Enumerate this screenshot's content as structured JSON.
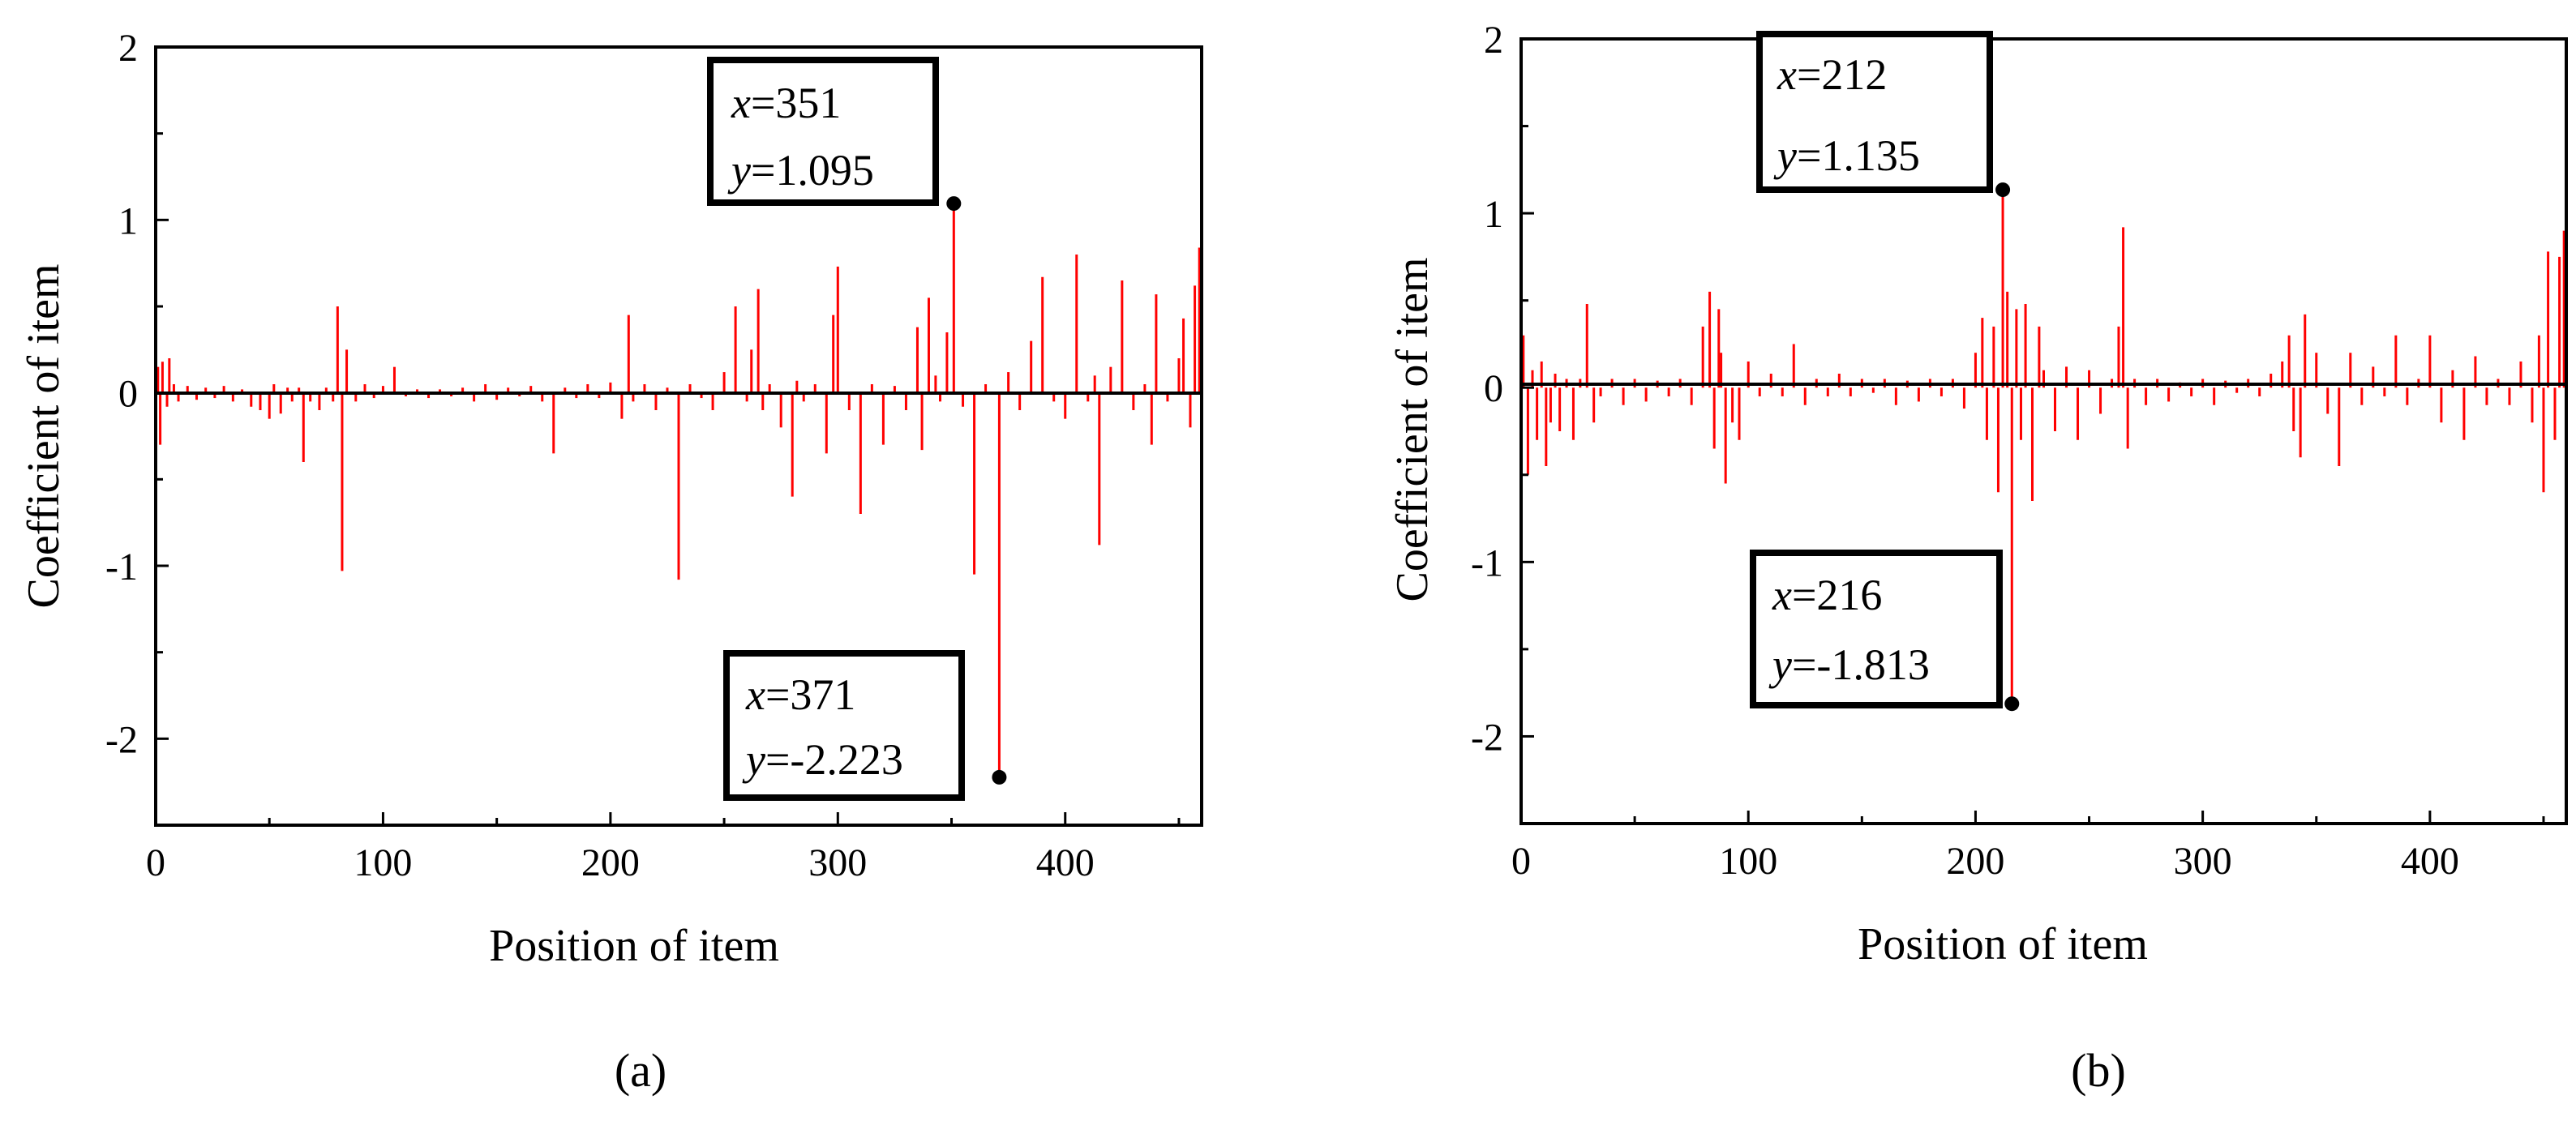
{
  "colors": {
    "series": "#ff0000",
    "axis": "#000000",
    "background": "#ffffff"
  },
  "chart_data": [
    {
      "type": "bar",
      "panel_label": "(a)",
      "title": "",
      "xlabel": "Position of item",
      "ylabel": "Coefficient of item",
      "xlim": [
        0,
        460
      ],
      "ylim": [
        -2.5,
        2
      ],
      "xticks": [
        0,
        100,
        200,
        300,
        400
      ],
      "yticks": [
        2,
        1,
        0,
        -1,
        -2
      ],
      "xtick_labels": [
        "0",
        "100",
        "200",
        "300",
        "400"
      ],
      "ytick_labels": [
        "2",
        "1",
        "0",
        "-1",
        "-2"
      ],
      "x": [
        1,
        2,
        3,
        5,
        6,
        8,
        10,
        14,
        18,
        22,
        26,
        30,
        34,
        38,
        42,
        46,
        50,
        52,
        55,
        58,
        60,
        63,
        65,
        68,
        72,
        75,
        78,
        80,
        82,
        84,
        88,
        92,
        96,
        100,
        105,
        110,
        115,
        120,
        125,
        130,
        135,
        140,
        145,
        150,
        155,
        160,
        165,
        170,
        175,
        180,
        185,
        190,
        195,
        200,
        205,
        208,
        210,
        215,
        220,
        225,
        230,
        235,
        240,
        245,
        250,
        255,
        260,
        262,
        265,
        267,
        270,
        275,
        280,
        282,
        285,
        290,
        295,
        298,
        300,
        305,
        310,
        315,
        320,
        325,
        330,
        335,
        337,
        340,
        343,
        345,
        348,
        351,
        355,
        360,
        365,
        371,
        375,
        380,
        385,
        390,
        395,
        400,
        405,
        410,
        413,
        415,
        420,
        425,
        430,
        435,
        438,
        440,
        445,
        450,
        452,
        455,
        457,
        459
      ],
      "values": [
        0.15,
        -0.3,
        0.18,
        -0.08,
        0.2,
        0.05,
        -0.05,
        0.04,
        -0.04,
        0.03,
        -0.03,
        0.04,
        -0.05,
        0.02,
        -0.08,
        -0.1,
        -0.15,
        0.05,
        -0.12,
        0.03,
        -0.05,
        0.03,
        -0.4,
        -0.05,
        -0.1,
        0.03,
        -0.05,
        0.5,
        -1.03,
        0.25,
        -0.05,
        0.05,
        -0.03,
        0.04,
        0.15,
        -0.02,
        0.02,
        -0.03,
        0.02,
        -0.02,
        0.03,
        -0.05,
        0.05,
        -0.04,
        0.03,
        -0.02,
        0.04,
        -0.05,
        -0.35,
        0.03,
        -0.03,
        0.05,
        -0.03,
        0.06,
        -0.15,
        0.45,
        -0.05,
        0.05,
        -0.1,
        0.03,
        -1.08,
        0.05,
        -0.03,
        -0.1,
        0.12,
        0.5,
        -0.05,
        0.25,
        0.6,
        -0.1,
        0.05,
        -0.2,
        -0.6,
        0.07,
        -0.05,
        0.05,
        -0.35,
        0.45,
        0.73,
        -0.1,
        -0.7,
        0.05,
        -0.3,
        0.04,
        -0.1,
        0.38,
        -0.33,
        0.55,
        0.1,
        -0.05,
        0.35,
        1.095,
        -0.08,
        -1.05,
        0.05,
        -2.223,
        0.12,
        -0.1,
        0.3,
        0.67,
        -0.05,
        -0.15,
        0.8,
        -0.05,
        0.1,
        -0.88,
        0.15,
        0.65,
        -0.1,
        0.05,
        -0.3,
        0.57,
        -0.05,
        0.2,
        0.43,
        -0.2,
        0.62,
        0.84
      ],
      "annotations": [
        {
          "x": 351,
          "y": 1.095,
          "line1_label": "x",
          "line1_value": "=351",
          "line2_label": "y",
          "line2_value": "=1.095"
        },
        {
          "x": 371,
          "y": -2.223,
          "line1_label": "x",
          "line1_value": "=371",
          "line2_label": "y",
          "line2_value": "=-2.223"
        }
      ]
    },
    {
      "type": "bar",
      "panel_label": "(b)",
      "title": "",
      "xlabel": "Position of item",
      "ylabel": "Coefficient of item",
      "xlim": [
        0,
        460
      ],
      "ylim": [
        -2.5,
        2
      ],
      "xticks": [
        0,
        100,
        200,
        300,
        400
      ],
      "yticks": [
        2,
        1,
        0,
        -1,
        -2
      ],
      "xtick_labels": [
        "0",
        "100",
        "200",
        "300",
        "400"
      ],
      "ytick_labels": [
        "2",
        "1",
        "0",
        "-1",
        "-2"
      ],
      "x": [
        1,
        3,
        5,
        7,
        9,
        11,
        13,
        15,
        17,
        20,
        23,
        26,
        29,
        32,
        35,
        40,
        45,
        50,
        55,
        60,
        65,
        70,
        75,
        80,
        83,
        85,
        87,
        88,
        90,
        93,
        96,
        100,
        105,
        110,
        115,
        120,
        125,
        130,
        135,
        140,
        145,
        150,
        155,
        160,
        165,
        170,
        175,
        180,
        185,
        190,
        195,
        200,
        203,
        205,
        208,
        210,
        212,
        214,
        216,
        218,
        220,
        222,
        225,
        228,
        230,
        235,
        240,
        245,
        250,
        255,
        260,
        263,
        265,
        267,
        270,
        275,
        280,
        285,
        290,
        295,
        300,
        305,
        310,
        315,
        320,
        325,
        330,
        335,
        338,
        340,
        343,
        345,
        350,
        355,
        360,
        365,
        370,
        375,
        380,
        385,
        390,
        395,
        400,
        405,
        410,
        415,
        420,
        425,
        430,
        435,
        440,
        445,
        448,
        450,
        452,
        455,
        457,
        459
      ],
      "values": [
        0.3,
        -0.5,
        0.1,
        -0.3,
        0.15,
        -0.45,
        -0.2,
        0.08,
        -0.25,
        0.05,
        -0.3,
        0.05,
        0.48,
        -0.2,
        -0.05,
        0.05,
        -0.1,
        0.05,
        -0.08,
        0.04,
        -0.05,
        0.05,
        -0.1,
        0.35,
        0.55,
        -0.35,
        0.45,
        0.2,
        -0.55,
        -0.2,
        -0.3,
        0.15,
        -0.05,
        0.08,
        -0.05,
        0.25,
        -0.1,
        0.05,
        -0.05,
        0.08,
        -0.05,
        0.05,
        -0.03,
        0.05,
        -0.1,
        0.04,
        -0.08,
        0.05,
        -0.05,
        0.05,
        -0.12,
        0.2,
        0.4,
        -0.3,
        0.35,
        -0.6,
        1.135,
        0.55,
        -1.813,
        0.45,
        -0.3,
        0.48,
        -0.65,
        0.35,
        0.1,
        -0.25,
        0.12,
        -0.3,
        0.1,
        -0.15,
        0.05,
        0.35,
        0.92,
        -0.35,
        0.05,
        -0.1,
        0.05,
        -0.08,
        0.03,
        -0.05,
        0.05,
        -0.1,
        0.04,
        -0.03,
        0.05,
        -0.05,
        0.08,
        0.15,
        0.3,
        -0.25,
        -0.4,
        0.42,
        0.2,
        -0.15,
        -0.45,
        0.2,
        -0.1,
        0.12,
        -0.05,
        0.3,
        -0.1,
        0.05,
        0.3,
        -0.2,
        0.1,
        -0.3,
        0.18,
        -0.1,
        0.05,
        -0.1,
        0.15,
        -0.2,
        0.3,
        -0.6,
        0.78,
        -0.3,
        0.75,
        0.9
      ],
      "annotations": [
        {
          "x": 212,
          "y": 1.135,
          "line1_label": "x",
          "line1_value": "=212",
          "line2_label": "y",
          "line2_value": "=1.135"
        },
        {
          "x": 216,
          "y": -1.813,
          "line1_label": "x",
          "line1_value": "=216",
          "line2_label": "y",
          "line2_value": "=-1.813"
        }
      ]
    }
  ]
}
